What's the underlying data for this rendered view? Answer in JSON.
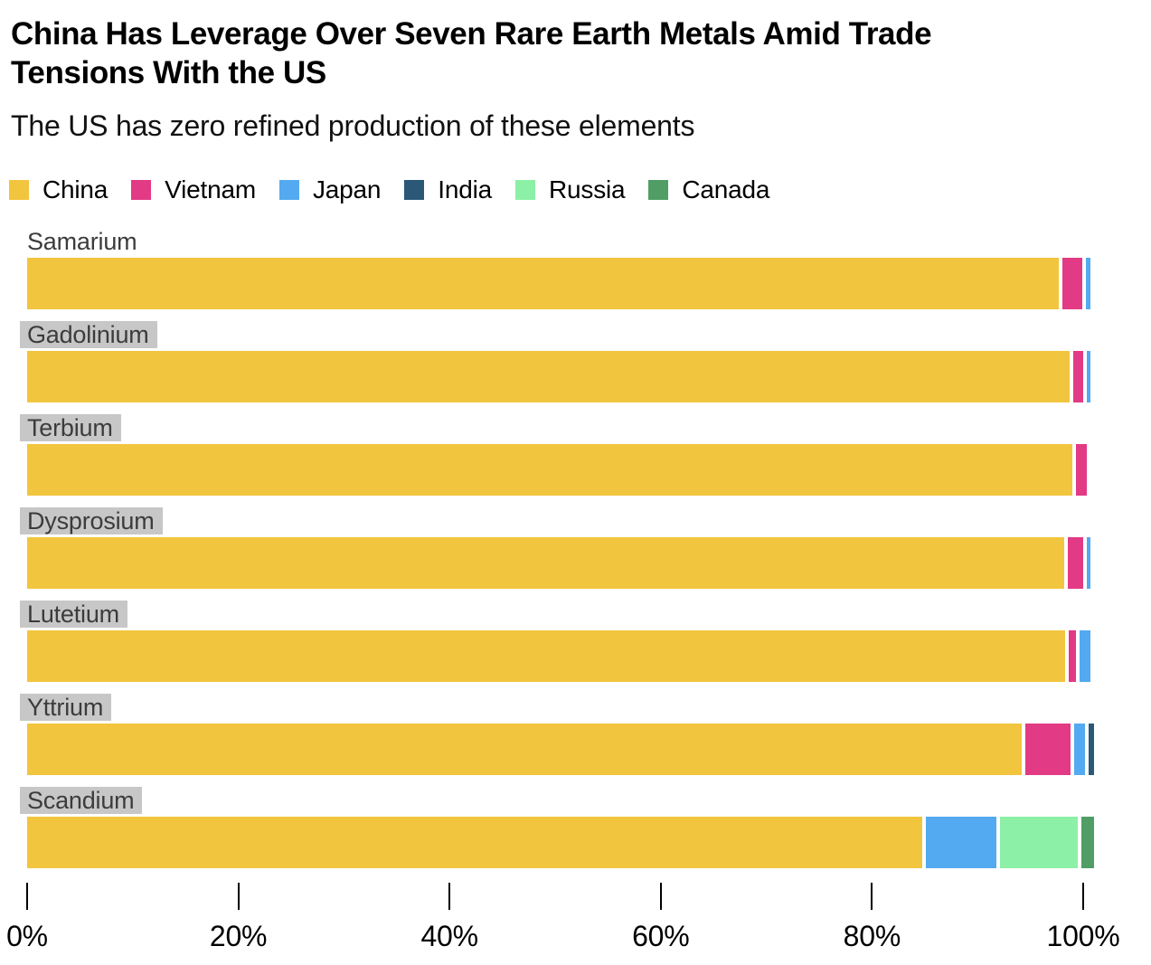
{
  "title_lines": [
    "China Has Leverage Over Seven Rare Earth Metals Amid Trade",
    "Tensions With the US"
  ],
  "subtitle": "The US has zero refined production of these elements",
  "highlight_color": "#c7c7c7",
  "label_text_color": "#3c3c3c",
  "chart_data": {
    "type": "bar",
    "orientation": "horizontal",
    "stacked": true,
    "units": "%",
    "grid": false,
    "legend_position": "top",
    "xlim": [
      0,
      100
    ],
    "x_ticks": [
      {
        "value": 0,
        "label": "0%"
      },
      {
        "value": 20,
        "label": "20%"
      },
      {
        "value": 40,
        "label": "40%"
      },
      {
        "value": 60,
        "label": "60%"
      },
      {
        "value": 80,
        "label": "80%"
      },
      {
        "value": 100,
        "label": "100%"
      }
    ],
    "categories": [
      "Samarium",
      "Gadolinium",
      "Terbium",
      "Dysprosium",
      "Lutetium",
      "Yttrium",
      "Scandium"
    ],
    "category_label_highlighted": [
      false,
      true,
      true,
      true,
      true,
      true,
      true
    ],
    "series": [
      {
        "name": "China",
        "color": "#F2C53E",
        "values": [
          97.7,
          98.7,
          99.0,
          98.2,
          98.3,
          94.2,
          84.8
        ]
      },
      {
        "name": "Vietnam",
        "color": "#E23A84",
        "values": [
          1.9,
          1.0,
          1.0,
          1.5,
          0.7,
          4.3,
          0
        ]
      },
      {
        "name": "Japan",
        "color": "#54AAF0",
        "values": [
          0.4,
          0.3,
          0,
          0.3,
          1.0,
          1.0,
          6.6
        ]
      },
      {
        "name": "India",
        "color": "#2B5876",
        "values": [
          0,
          0,
          0,
          0,
          0,
          0.5,
          0
        ]
      },
      {
        "name": "Russia",
        "color": "#8CF0A6",
        "values": [
          0,
          0,
          0,
          0,
          0,
          0,
          7.4
        ]
      },
      {
        "name": "Canada",
        "color": "#509E65",
        "values": [
          0,
          0,
          0,
          0,
          0,
          0,
          1.2
        ]
      }
    ]
  }
}
